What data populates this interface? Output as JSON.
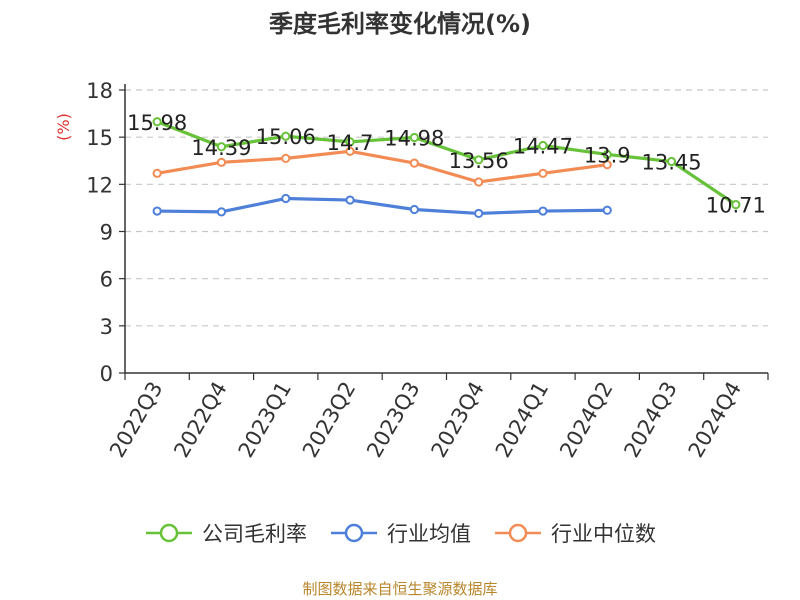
{
  "chart_data": {
    "type": "line",
    "title": "季度毛利率变化情况(%)",
    "ylabel": "(%)",
    "xlabel": "",
    "categories": [
      "2022Q3",
      "2022Q4",
      "2023Q1",
      "2023Q2",
      "2023Q3",
      "2023Q4",
      "2024Q1",
      "2024Q2",
      "2024Q3",
      "2024Q4"
    ],
    "ylim": [
      0,
      18
    ],
    "yticks": [
      0,
      3,
      6,
      9,
      12,
      15,
      18
    ],
    "grid": "horizontal dashed",
    "legend_position": "bottom",
    "series": [
      {
        "name": "公司毛利率",
        "color": "#67c23a",
        "values": [
          15.98,
          14.39,
          15.06,
          14.7,
          14.98,
          13.56,
          14.47,
          13.9,
          13.45,
          10.71
        ],
        "data_labels": [
          "15.98",
          "14.39",
          "15.06",
          "14.7",
          "14.98",
          "13.56",
          "14.47",
          "13.9",
          "13.45",
          "10.71"
        ]
      },
      {
        "name": "行业均值",
        "color": "#4e7fd9",
        "values": [
          10.3,
          10.25,
          11.1,
          11.0,
          10.4,
          10.15,
          10.3,
          10.35,
          null,
          null
        ]
      },
      {
        "name": "行业中位数",
        "color": "#f28c54",
        "values": [
          12.7,
          13.4,
          13.65,
          14.1,
          13.35,
          12.15,
          12.7,
          13.25,
          null,
          null
        ]
      }
    ],
    "source": "制图数据来自恒生聚源数据库"
  }
}
